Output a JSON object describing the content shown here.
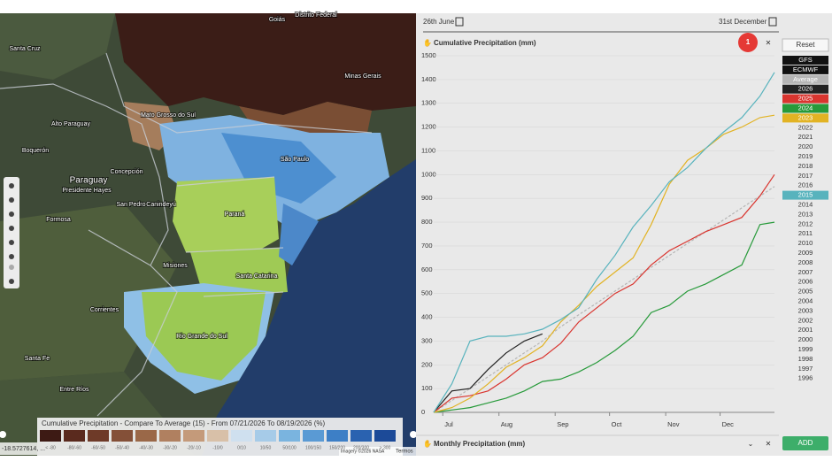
{
  "map": {
    "labels": [
      "Goiás",
      "Distrito Federal",
      "Minas Gerais",
      "Mato Grosso do Sul",
      "São Paulo",
      "Paraná",
      "Santa Catarina",
      "Rio Grande do Sul",
      "Santa Cruz",
      "Alto Paraguay",
      "Boquerón",
      "Paraguay",
      "Presidente Hayes",
      "Concepción",
      "Formosa",
      "San Pedro",
      "Canindeyú",
      "Misiones",
      "Corrientes",
      "Santa Fe",
      "Entre Ríos"
    ],
    "legend_title": "Cumulative Precipitation - Compare To Average (15) - From 07/21/2026 To 08/19/2026 (%)",
    "legend_bins": [
      "< -80",
      "-80/-60",
      "-60/-50",
      "-50/-40",
      "-40/-30",
      "-30/-20",
      "-20/-10",
      "-10/0",
      "0/10",
      "10/50",
      "50/100",
      "100/150",
      "150/200",
      "200/300",
      "> 300"
    ],
    "legend_colors": [
      "#3d1a14",
      "#5a2a1e",
      "#6e3a28",
      "#845038",
      "#9a6848",
      "#b08060",
      "#c49a7a",
      "#d8c0a8",
      "#cfe0ef",
      "#a6cbe8",
      "#7ab4df",
      "#5a9ad4",
      "#3d7fc6",
      "#2a62b0",
      "#1c4a98"
    ],
    "coordinates": "-18.5727614, ...",
    "attribution": "Imagery ©2026 NASA",
    "terms": "Termos"
  },
  "panel": {
    "start_date": "26th June",
    "end_date": "31st December",
    "title": "Cumulative Precipitation (mm)",
    "badge": "1",
    "reset": "Reset",
    "bottom_title": "Monthly Precipitation (mm)",
    "add": "ADD",
    "model_buttons": [
      "GFS",
      "ECMWF"
    ],
    "years_a": [
      "2022",
      "2021",
      "2020",
      "2019",
      "2018",
      "2017",
      "2016"
    ],
    "years_b": [
      "2014",
      "2013",
      "2012",
      "2011",
      "2010",
      "2009",
      "2008",
      "2007",
      "2006",
      "2005",
      "2004",
      "2003",
      "2002",
      "2001",
      "2000",
      "1999",
      "1998",
      "1997",
      "1996"
    ]
  },
  "chart_data": {
    "type": "line",
    "x": [
      0,
      10,
      20,
      30,
      40,
      50,
      60,
      70,
      80,
      90,
      100,
      110,
      120,
      130,
      140,
      150,
      160,
      170,
      180,
      188
    ],
    "xlim": [
      0,
      188
    ],
    "xticks": [
      {
        "value": 5,
        "label": "Jul"
      },
      {
        "value": 36,
        "label": "Aug"
      },
      {
        "value": 67,
        "label": "Sep"
      },
      {
        "value": 97,
        "label": "Oct"
      },
      {
        "value": 128,
        "label": "Nov"
      },
      {
        "value": 158,
        "label": "Dec"
      }
    ],
    "ylim": [
      0,
      1500
    ],
    "yticks": [
      0,
      100,
      200,
      300,
      400,
      500,
      600,
      700,
      800,
      900,
      1000,
      1100,
      1200,
      1300,
      1400,
      1500
    ],
    "grid": true,
    "series": [
      {
        "name": "Average",
        "color": "#b5b5b5",
        "dashed": true,
        "values": [
          0,
          50,
          100,
          150,
          200,
          250,
          300,
          360,
          410,
          460,
          510,
          560,
          610,
          660,
          710,
          760,
          810,
          860,
          910,
          950
        ]
      },
      {
        "name": "2026",
        "color": "#222222",
        "values": [
          0,
          90,
          100,
          180,
          250,
          300,
          330,
          null,
          null,
          null,
          null,
          null,
          null,
          null,
          null,
          null,
          null,
          null,
          null,
          null
        ]
      },
      {
        "name": "2025",
        "color": "#d9352f",
        "values": [
          0,
          60,
          70,
          90,
          140,
          200,
          230,
          290,
          380,
          440,
          500,
          540,
          620,
          680,
          720,
          760,
          790,
          820,
          910,
          1000
        ]
      },
      {
        "name": "2024",
        "color": "#279a3a",
        "values": [
          0,
          10,
          20,
          40,
          60,
          90,
          130,
          140,
          170,
          210,
          260,
          320,
          420,
          450,
          510,
          540,
          580,
          620,
          790,
          800
        ]
      },
      {
        "name": "2023",
        "color": "#e2b324",
        "values": [
          0,
          20,
          60,
          120,
          190,
          230,
          280,
          380,
          450,
          530,
          590,
          650,
          790,
          960,
          1060,
          1110,
          1170,
          1200,
          1240,
          1250
        ]
      },
      {
        "name": "2015",
        "color": "#58b3bd",
        "values": [
          0,
          120,
          300,
          320,
          320,
          330,
          350,
          390,
          440,
          560,
          660,
          780,
          870,
          970,
          1030,
          1110,
          1180,
          1240,
          1330,
          1430
        ]
      }
    ]
  }
}
